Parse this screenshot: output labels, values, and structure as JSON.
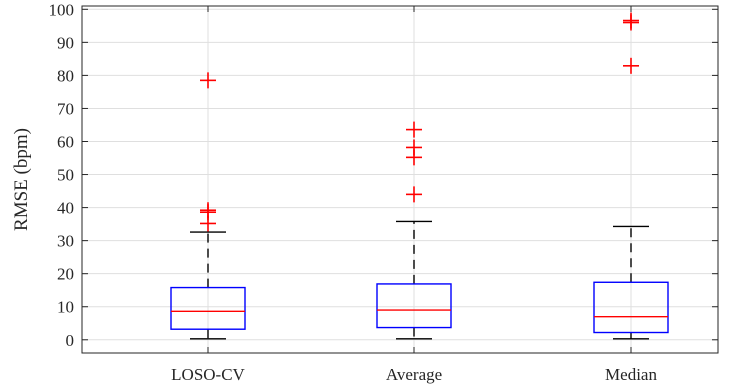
{
  "chart_data": {
    "type": "box",
    "title": "",
    "xlabel": "",
    "ylabel": "RMSE (bpm)",
    "ylim": [
      -4,
      101
    ],
    "yticks": [
      0,
      10,
      20,
      30,
      40,
      50,
      60,
      70,
      80,
      90,
      100
    ],
    "grid": true,
    "categories": [
      "LOSO-CV",
      "Average",
      "Median"
    ],
    "boxes": [
      {
        "name": "LOSO-CV",
        "whisker_low": 0.3,
        "q1": 3.2,
        "median": 8.6,
        "q3": 15.8,
        "whisker_high": 32.6,
        "outliers": [
          35.2,
          38.6,
          39.2,
          78.5
        ]
      },
      {
        "name": "Average",
        "whisker_low": 0.3,
        "q1": 3.7,
        "median": 9.0,
        "q3": 16.9,
        "whisker_high": 35.8,
        "outliers": [
          44.0,
          55.2,
          58.2,
          63.6
        ]
      },
      {
        "name": "Median",
        "whisker_low": 0.3,
        "q1": 2.2,
        "median": 7.0,
        "q3": 17.4,
        "whisker_high": 34.3,
        "outliers": [
          82.9,
          96.0,
          96.6
        ]
      }
    ],
    "colors": {
      "box": "#0000ff",
      "median": "#ff0000",
      "outlier": "#ff0000",
      "whisker": "#000000",
      "grid": "#dfdfdf",
      "axis": "#262626"
    }
  }
}
